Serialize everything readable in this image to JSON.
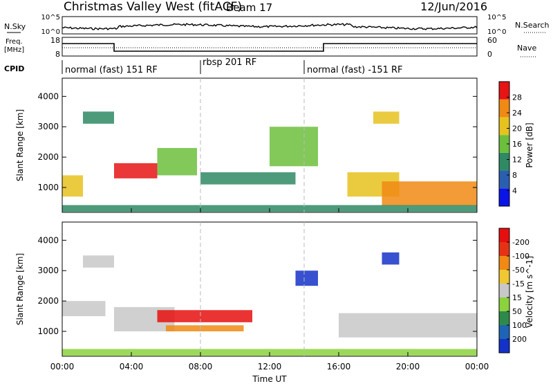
{
  "header": {
    "title": "Christmas Valley West (fitACF)",
    "beam": "Beam 17",
    "date": "12/Jun/2016"
  },
  "top_panels": {
    "nsky_label": "N.Sky",
    "nsky_ticks": [
      "10^5",
      "10^0"
    ],
    "nsearch_label": "N.Search",
    "nsearch_ticks": [
      "10^5",
      "10^0"
    ],
    "freq_label_1": "Freq.",
    "freq_label_2": "[MHz]",
    "freq_ticks": [
      "18",
      "8"
    ],
    "nave_label": "Nave",
    "nave_ticks": [
      "60",
      "0"
    ],
    "cpid_label": "CPID",
    "cpid_segments": [
      {
        "label": "normal (fast) 151 RF",
        "start_hour": 0,
        "end_hour": 8
      },
      {
        "label": "rbsp 201 RF",
        "start_hour": 8,
        "end_hour": 14
      },
      {
        "label": "normal (fast) -151 RF",
        "start_hour": 14,
        "end_hour": 24
      }
    ]
  },
  "chart_data": [
    {
      "type": "heatmap",
      "ylabel": "Slant Range [km]",
      "xlabel": "Time UT",
      "xlim": [
        0,
        24
      ],
      "ylim": [
        180,
        4600
      ],
      "y_ticks": [
        "1000",
        "2000",
        "3000",
        "4000"
      ],
      "x_ticks": [
        "00:00",
        "04:00",
        "08:00",
        "12:00",
        "16:00",
        "20:00",
        "00:00"
      ],
      "colorbar_label": "Power [dB]",
      "colorbar_ticks": [
        "4",
        "8",
        "12",
        "16",
        "20",
        "24",
        "28"
      ],
      "colorbar_colors": [
        "#0a14e6",
        "#2a5fb0",
        "#2e8a64",
        "#6cbf3c",
        "#e6c21e",
        "#f08a14",
        "#e61414"
      ],
      "regions": [
        {
          "name": "patch A",
          "t0": 0.0,
          "t1": 1.2,
          "r0": 700,
          "r1": 1400,
          "level": 0.6
        },
        {
          "name": "patch B",
          "t0": 1.2,
          "t1": 3.0,
          "r0": 3100,
          "r1": 3500,
          "level": 0.35
        },
        {
          "name": "patch C",
          "t0": 3.0,
          "t1": 5.5,
          "r0": 1300,
          "r1": 1800,
          "level": 0.9
        },
        {
          "name": "patch D",
          "t0": 5.5,
          "t1": 7.8,
          "r0": 1400,
          "r1": 2300,
          "level": 0.45
        },
        {
          "name": "patch E",
          "t0": 8.0,
          "t1": 13.5,
          "r0": 1100,
          "r1": 1500,
          "level": 0.4
        },
        {
          "name": "patch F",
          "t0": 12.0,
          "t1": 14.8,
          "r0": 1700,
          "r1": 3000,
          "level": 0.45
        },
        {
          "name": "patch G",
          "t0": 16.5,
          "t1": 19.5,
          "r0": 700,
          "r1": 1500,
          "level": 0.7
        },
        {
          "name": "patch H",
          "t0": 18.5,
          "t1": 24.0,
          "r0": 400,
          "r1": 1200,
          "level": 0.85
        },
        {
          "name": "patch I",
          "t0": 18.0,
          "t1": 19.5,
          "r0": 3100,
          "r1": 3500,
          "level": 0.6
        },
        {
          "name": "near-range band",
          "t0": 0.0,
          "t1": 24.0,
          "r0": 200,
          "r1": 420,
          "level": 0.3
        }
      ]
    },
    {
      "type": "heatmap",
      "ylabel": "Slant Range [km]",
      "xlabel": "Time UT",
      "xlim": [
        0,
        24
      ],
      "ylim": [
        180,
        4600
      ],
      "y_ticks": [
        "1000",
        "2000",
        "3000",
        "4000"
      ],
      "x_ticks": [
        "00:00",
        "04:00",
        "08:00",
        "12:00",
        "16:00",
        "20:00",
        "00:00"
      ],
      "colorbar_label": "Velocity [m s^-1]",
      "colorbar_ticks": [
        "200",
        "100",
        "50",
        "15",
        "-15",
        "-50",
        "-100",
        "-200"
      ],
      "colorbar_colors": [
        "#1432c8",
        "#1e64b4",
        "#2e8a4a",
        "#8cd23c",
        "#c8c8c8",
        "#f0c832",
        "#f08a14",
        "#e63214",
        "#e60f0f"
      ],
      "regions": [
        {
          "name": "patch A",
          "t0": 0.0,
          "t1": 2.5,
          "r0": 1500,
          "r1": 2000,
          "level": 0.5
        },
        {
          "name": "patch B",
          "t0": 1.2,
          "t1": 3.0,
          "r0": 3100,
          "r1": 3500,
          "level": 0.5
        },
        {
          "name": "patch C",
          "t0": 3.0,
          "t1": 6.5,
          "r0": 1000,
          "r1": 1800,
          "level": 0.5
        },
        {
          "name": "patch D",
          "t0": 5.5,
          "t1": 11.0,
          "r0": 1300,
          "r1": 1700,
          "level": 0.95
        },
        {
          "name": "patch E",
          "t0": 6.0,
          "t1": 10.5,
          "r0": 1000,
          "r1": 1200,
          "level": 0.75
        },
        {
          "name": "patch F",
          "t0": 13.5,
          "t1": 14.8,
          "r0": 2500,
          "r1": 3000,
          "level": 0.05
        },
        {
          "name": "patch G",
          "t0": 16.0,
          "t1": 24.0,
          "r0": 800,
          "r1": 1600,
          "level": 0.5
        },
        {
          "name": "patch H",
          "t0": 18.5,
          "t1": 19.5,
          "r0": 3200,
          "r1": 3600,
          "level": 0.1
        },
        {
          "name": "near-range band",
          "t0": 0.0,
          "t1": 24.0,
          "r0": 200,
          "r1": 420,
          "level": 0.35
        }
      ]
    }
  ]
}
